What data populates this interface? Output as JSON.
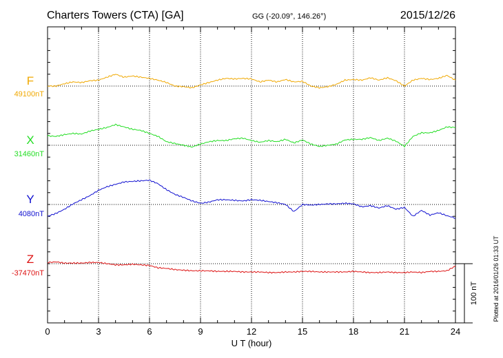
{
  "header": {
    "station": "Charters Towers (CTA)  [GA]",
    "coords": "GG (-20.09°, 146.26°)",
    "date": "2015/12/26"
  },
  "footer": {
    "plotted": "Plotted at 2016/01/26 01:33 UT",
    "scale_label": "100 nT"
  },
  "chart_data": {
    "type": "line",
    "xlabel": "U T (hour)",
    "xlim": [
      0,
      24
    ],
    "xticks": [
      "0",
      "3",
      "6",
      "9",
      "12",
      "15",
      "18",
      "21",
      "24"
    ],
    "scale_nt": 100,
    "series": [
      {
        "name": "F",
        "baseline_label": "49100nT",
        "baseline": 49100,
        "color": "#f0a800",
        "x": [
          0,
          0.5,
          1,
          1.5,
          2,
          2.5,
          3,
          3.5,
          4,
          4.5,
          5,
          5.5,
          6,
          6.5,
          7,
          7.5,
          8,
          8.5,
          9,
          9.5,
          10,
          10.5,
          11,
          11.5,
          12,
          12.5,
          13,
          13.5,
          14,
          14.5,
          15,
          15.5,
          16,
          16.5,
          17,
          17.5,
          18,
          18.5,
          19,
          19.5,
          20,
          20.5,
          21,
          21.5,
          22,
          22.5,
          23,
          23.5,
          24
        ],
        "values": [
          49100,
          49100,
          49104,
          49107,
          49106,
          49109,
          49110,
          49115,
          49120,
          49115,
          49117,
          49115,
          49113,
          49110,
          49106,
          49100,
          49099,
          49097,
          49102,
          49106,
          49110,
          49113,
          49112,
          49113,
          49112,
          49107,
          49110,
          49107,
          49111,
          49107,
          49108,
          49100,
          49097,
          49099,
          49103,
          49110,
          49111,
          49110,
          49114,
          49110,
          49114,
          49109,
          49100,
          49110,
          49113,
          49111,
          49113,
          49118,
          49110
        ]
      },
      {
        "name": "X",
        "baseline_label": "31460nT",
        "baseline": 31460,
        "color": "#22dd22",
        "x": [
          0,
          0.5,
          1,
          1.5,
          2,
          2.5,
          3,
          3.5,
          4,
          4.5,
          5,
          5.5,
          6,
          6.5,
          7,
          7.5,
          8,
          8.5,
          9,
          9.5,
          10,
          10.5,
          11,
          11.5,
          12,
          12.5,
          13,
          13.5,
          14,
          14.5,
          15,
          15.5,
          16,
          16.5,
          17,
          17.5,
          18,
          18.5,
          19,
          19.5,
          20,
          20.5,
          21,
          21.5,
          22,
          22.5,
          23,
          23.5,
          24
        ],
        "values": [
          31476,
          31475,
          31478,
          31480,
          31479,
          31484,
          31487,
          31490,
          31495,
          31491,
          31487,
          31485,
          31480,
          31475,
          31466,
          31463,
          31460,
          31457,
          31462,
          31466,
          31468,
          31468,
          31471,
          31472,
          31468,
          31465,
          31468,
          31466,
          31470,
          31464,
          31469,
          31462,
          31458,
          31460,
          31462,
          31469,
          31470,
          31470,
          31473,
          31468,
          31472,
          31467,
          31458,
          31475,
          31481,
          31481,
          31485,
          31491,
          31490
        ]
      },
      {
        "name": "Y",
        "baseline_label": "4080nT",
        "baseline": 4080,
        "color": "#1010d0",
        "x": [
          0,
          0.5,
          1,
          1.5,
          2,
          2.5,
          3,
          3.5,
          4,
          4.5,
          5,
          5.5,
          6,
          6.5,
          7,
          7.5,
          8,
          8.5,
          9,
          9.5,
          10,
          10.5,
          11,
          11.5,
          12,
          12.5,
          13,
          13.5,
          14,
          14.5,
          15,
          15.5,
          16,
          16.5,
          17,
          17.5,
          18,
          18.5,
          19,
          19.5,
          20,
          20.5,
          21,
          21.5,
          22,
          22.5,
          23,
          23.5,
          24
        ],
        "values": [
          4060,
          4065,
          4072,
          4081,
          4088,
          4095,
          4104,
          4110,
          4114,
          4118,
          4119,
          4120,
          4121,
          4115,
          4105,
          4097,
          4092,
          4086,
          4082,
          4084,
          4088,
          4088,
          4087,
          4086,
          4088,
          4087,
          4085,
          4083,
          4080,
          4068,
          4080,
          4079,
          4080,
          4081,
          4081,
          4082,
          4081,
          4076,
          4078,
          4074,
          4078,
          4072,
          4075,
          4060,
          4070,
          4062,
          4066,
          4061,
          4057
        ]
      },
      {
        "name": "Z",
        "baseline_label": "-37470nT",
        "baseline": -37470,
        "color": "#dd1111",
        "x": [
          0,
          0.5,
          1,
          1.5,
          2,
          2.5,
          3,
          3.5,
          4,
          4.5,
          5,
          5.5,
          6,
          6.5,
          7,
          7.5,
          8,
          8.5,
          9,
          9.5,
          10,
          10.5,
          11,
          11.5,
          12,
          12.5,
          13,
          13.5,
          14,
          14.5,
          15,
          15.5,
          16,
          16.5,
          17,
          17.5,
          18,
          18.5,
          19,
          19.5,
          20,
          20.5,
          21,
          21.5,
          22,
          22.5,
          23,
          23.5,
          24
        ],
        "values": [
          -37468,
          -37467,
          -37469,
          -37469,
          -37469,
          -37468,
          -37468,
          -37470,
          -37472,
          -37472,
          -37471,
          -37472,
          -37473,
          -37477,
          -37478,
          -37480,
          -37481,
          -37482,
          -37482,
          -37482,
          -37483,
          -37483,
          -37483,
          -37484,
          -37484,
          -37484,
          -37485,
          -37485,
          -37484,
          -37484,
          -37483,
          -37483,
          -37484,
          -37484,
          -37484,
          -37484,
          -37483,
          -37484,
          -37485,
          -37485,
          -37484,
          -37485,
          -37485,
          -37484,
          -37485,
          -37483,
          -37483,
          -37482,
          -37474
        ]
      }
    ]
  }
}
